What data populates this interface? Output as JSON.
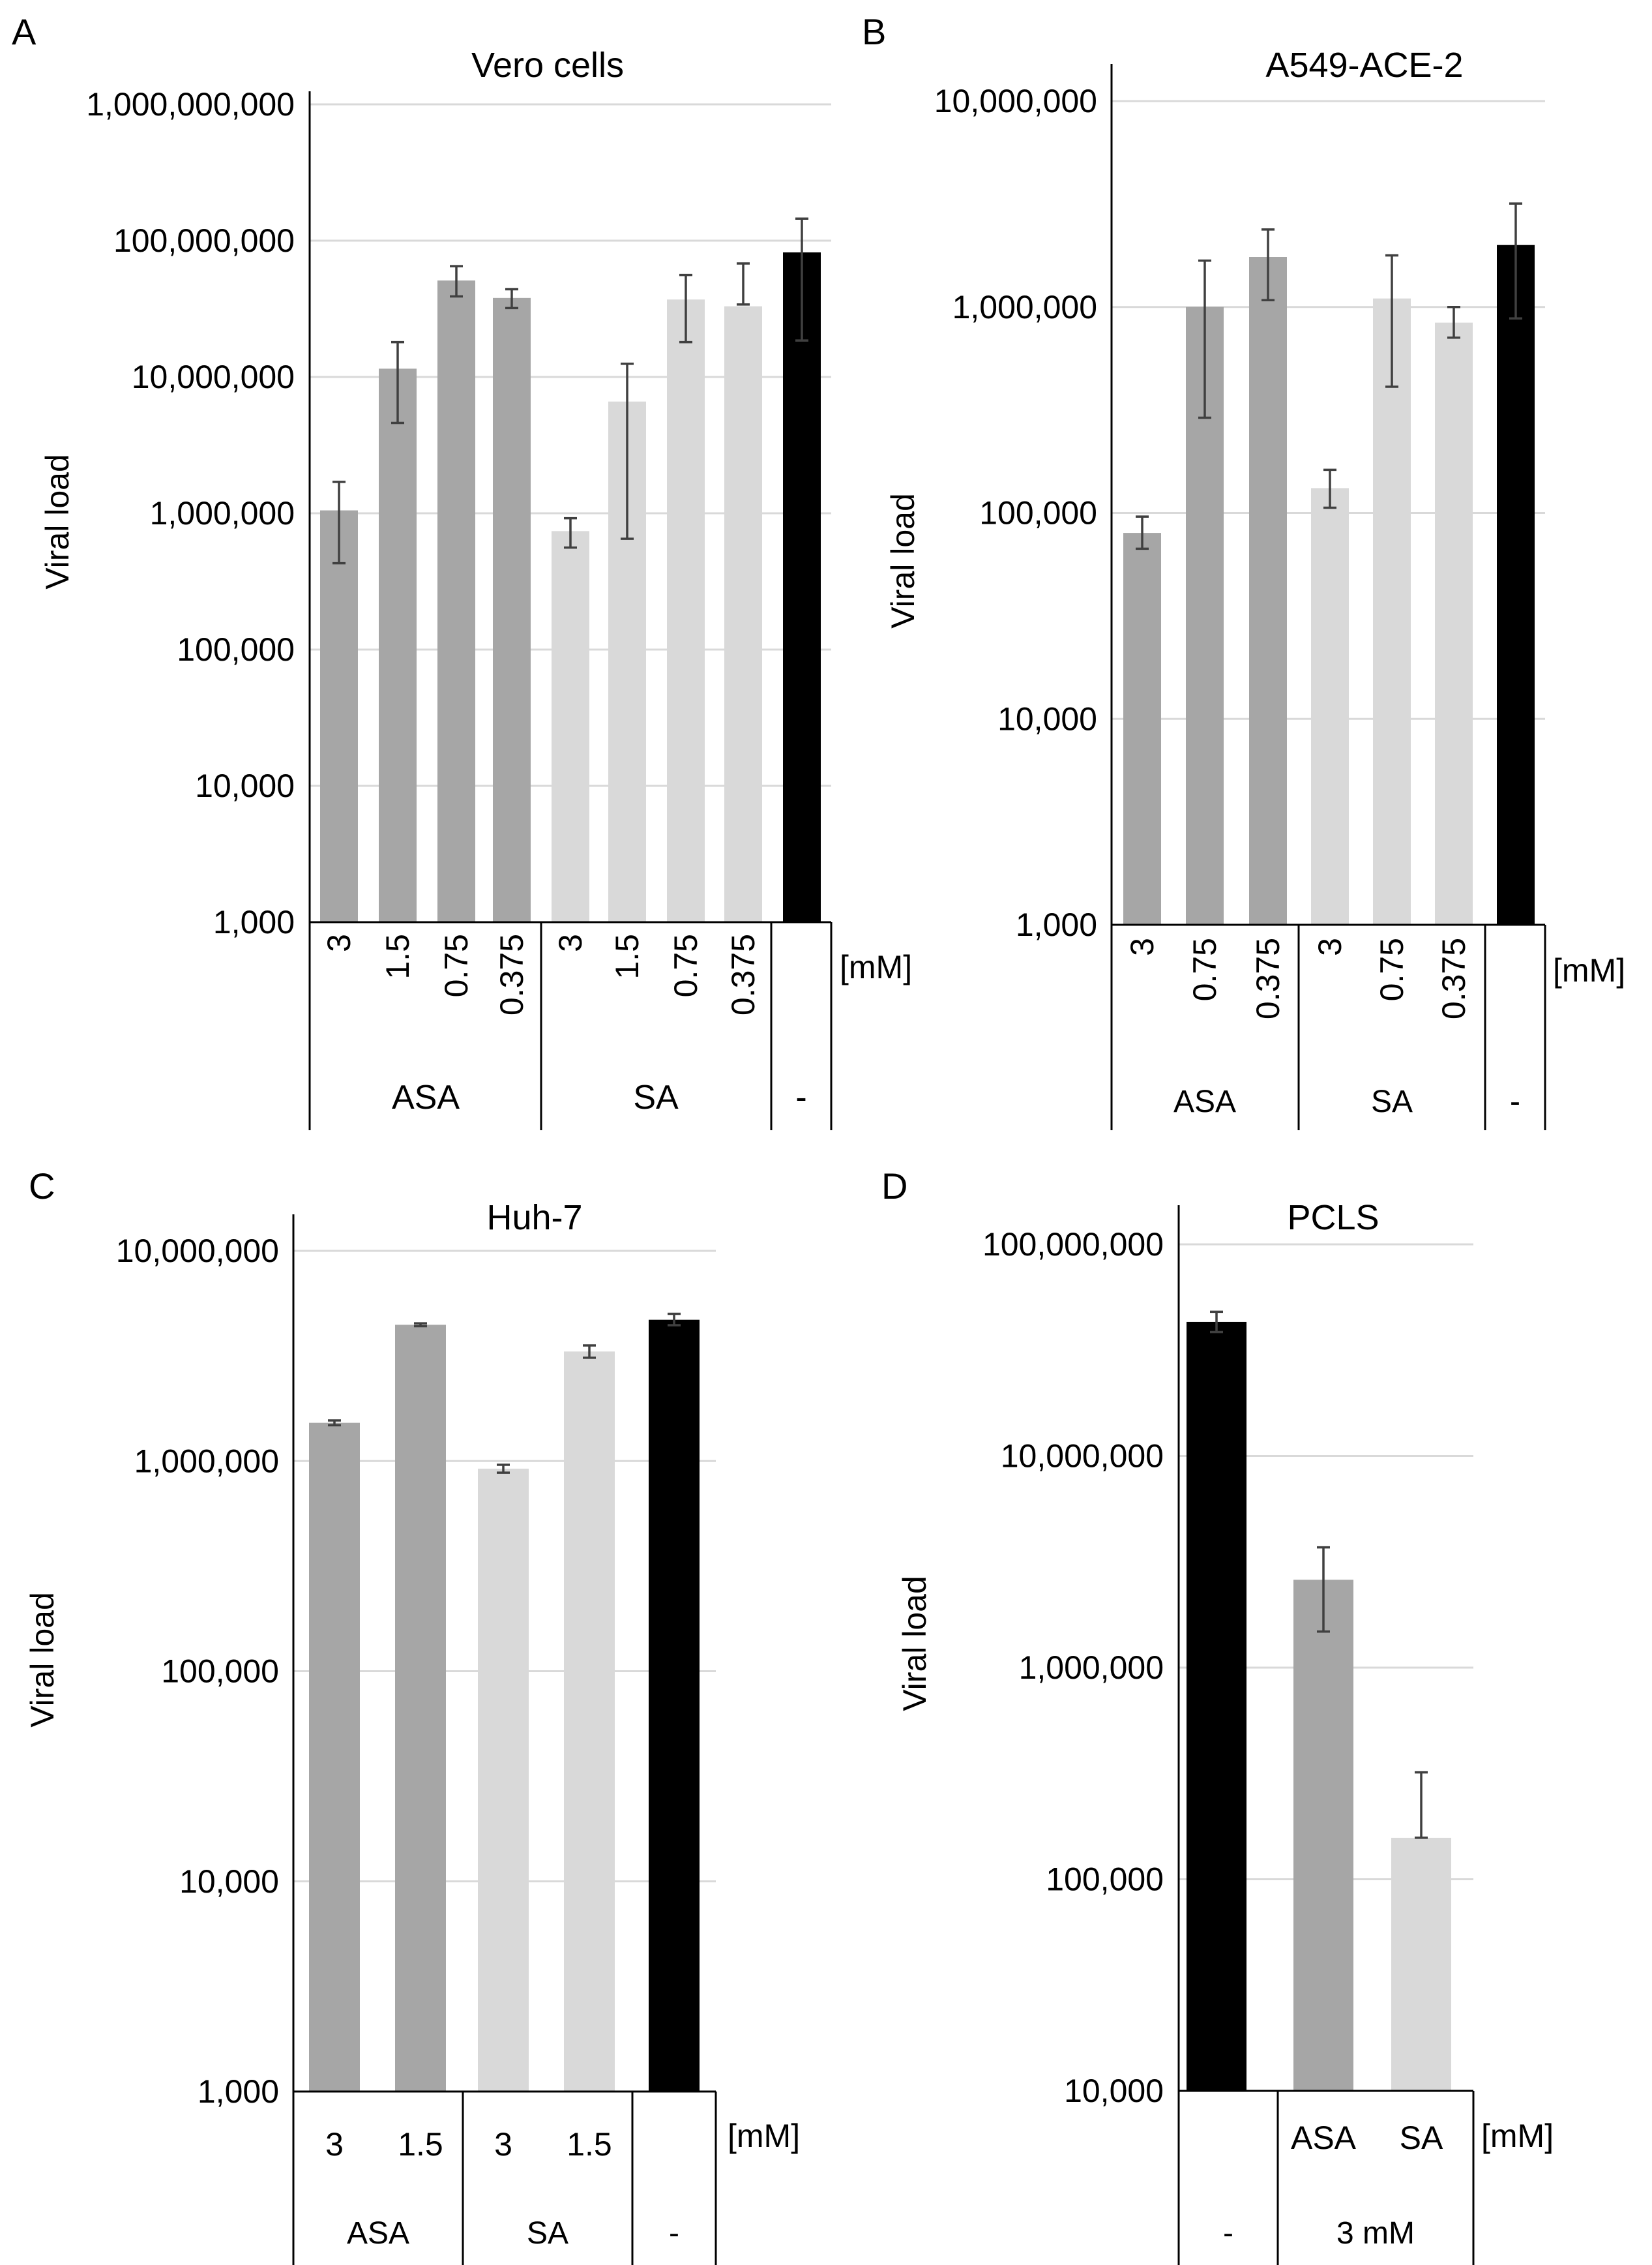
{
  "figure_colors": {
    "ASA": "#a6a6a6",
    "SA": "#d9d9d9",
    "-": "#000000"
  },
  "chart_data": [
    {
      "type": "bar",
      "panel_label": "A",
      "title": "Vero cells",
      "ylabel": "Viral load",
      "yscale": "log",
      "ylim": [
        1000,
        1000000000
      ],
      "yticks": [
        1000,
        10000,
        100000,
        1000000,
        10000000,
        100000000,
        1000000000
      ],
      "ytick_labels": [
        "1,000",
        "10,000",
        "100,000",
        "1,000,000",
        "10,000,000",
        "100,000,000",
        "1,000,000,000"
      ],
      "unit_label": "[mM]",
      "categories": [
        "3",
        "1.5",
        "0.75",
        "0.375",
        "3",
        "1.5",
        "0.75",
        "0.375",
        ""
      ],
      "groups": [
        "ASA",
        "ASA",
        "ASA",
        "ASA",
        "SA",
        "SA",
        "SA",
        "SA",
        "-"
      ],
      "group_labels": [
        "ASA",
        "SA",
        "-"
      ],
      "values": [
        1050000,
        11500000,
        51000000,
        38000000,
        740000,
        6600000,
        37000000,
        33000000,
        82000000
      ],
      "err_low": [
        430000,
        4600000,
        39000000,
        32000000,
        560000,
        650000,
        18000000,
        34000000,
        18500000
      ],
      "err_high": [
        1700000,
        18000000,
        65000000,
        44000000,
        920000,
        12500000,
        56000000,
        68000000,
        145000000
      ]
    },
    {
      "type": "bar",
      "panel_label": "B",
      "title": "A549-ACE-2",
      "ylabel": "Viral load",
      "yscale": "log",
      "ylim": [
        1000,
        10000000
      ],
      "yticks": [
        1000,
        10000,
        100000,
        1000000,
        10000000
      ],
      "ytick_labels": [
        "1,000",
        "10,000",
        "100,000",
        "1,000,000",
        "10,000,000"
      ],
      "unit_label": "[mM]",
      "categories": [
        "3",
        "0.75",
        "0.375",
        "3",
        "0.75",
        "0.375",
        ""
      ],
      "groups": [
        "ASA",
        "ASA",
        "ASA",
        "SA",
        "SA",
        "SA",
        "-"
      ],
      "group_labels": [
        "ASA",
        "SA",
        "-"
      ],
      "values": [
        80000,
        1000000,
        1750000,
        132000,
        1100000,
        840000,
        2000000
      ],
      "err_low": [
        67000,
        290000,
        1080000,
        106000,
        410000,
        710000,
        880000
      ],
      "err_high": [
        96000,
        1680000,
        2380000,
        162000,
        1780000,
        1000000,
        3180000
      ]
    },
    {
      "type": "bar",
      "panel_label": "C",
      "title": "Huh-7",
      "ylabel": "Viral load",
      "yscale": "log",
      "ylim": [
        1000,
        10000000
      ],
      "yticks": [
        1000,
        10000,
        100000,
        1000000,
        10000000
      ],
      "ytick_labels": [
        "1,000",
        "10,000",
        "100,000",
        "1,000,000",
        "10,000,000"
      ],
      "unit_label": "[mM]",
      "categories": [
        "3",
        "1.5",
        "3",
        "1.5",
        ""
      ],
      "groups": [
        "ASA",
        "ASA",
        "SA",
        "SA",
        "-"
      ],
      "group_labels": [
        "ASA",
        "SA",
        "-"
      ],
      "values": [
        1520000,
        4450000,
        920000,
        3320000,
        4700000
      ],
      "err_low": [
        1480000,
        4380000,
        880000,
        3100000,
        4430000
      ],
      "err_high": [
        1560000,
        4520000,
        960000,
        3550000,
        5020000
      ]
    },
    {
      "type": "bar",
      "panel_label": "D",
      "title": "PCLS",
      "ylabel": "Viral load",
      "yscale": "log",
      "ylim": [
        10000,
        100000000
      ],
      "yticks": [
        10000,
        100000,
        1000000,
        10000000,
        100000000
      ],
      "ytick_labels": [
        "10,000",
        "100,000",
        "1,000,000",
        "10,000,000",
        "100,000,000"
      ],
      "unit_label": "[mM]",
      "categories": [
        "",
        "ASA",
        "SA"
      ],
      "groups": [
        "-",
        "ASA",
        "SA"
      ],
      "group_labels": [
        "-",
        "3 mM"
      ],
      "values": [
        43000000,
        2600000,
        157000
      ],
      "err_low": [
        38500000,
        1480000,
        157000
      ],
      "err_high": [
        48000000,
        3700000,
        320000
      ]
    }
  ]
}
